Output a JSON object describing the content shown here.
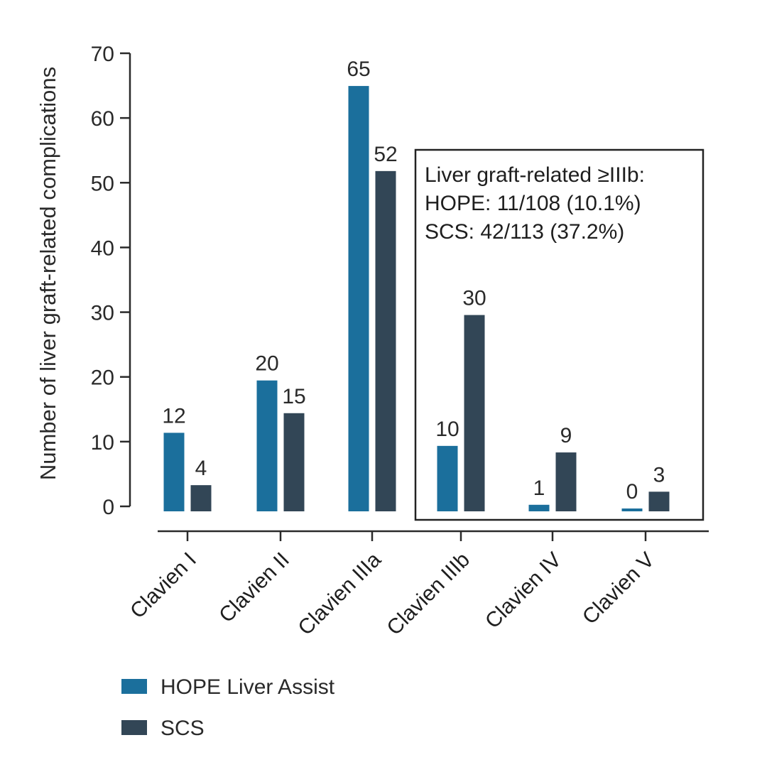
{
  "chart_data": {
    "type": "bar",
    "title": "",
    "xlabel": "",
    "ylabel": "Number of liver graft-related complications",
    "ylim": [
      0,
      70
    ],
    "yticks": [
      0,
      10,
      20,
      30,
      40,
      50,
      60,
      70
    ],
    "categories": [
      "Clavien I",
      "Clavien II",
      "Clavien IIIa",
      "Clavien IIIb",
      "Clavien IV",
      "Clavien V"
    ],
    "series": [
      {
        "name": "HOPE Liver Assist",
        "color": "#1b6f9c",
        "values": [
          12,
          20,
          65,
          10,
          1,
          0
        ]
      },
      {
        "name": "SCS",
        "color": "#324656",
        "values": [
          4,
          15,
          52,
          30,
          9,
          3
        ]
      }
    ],
    "legend_position": "bottom-left",
    "annotation": {
      "lines": [
        "Liver graft-related ≥IIIb:",
        "HOPE: 11/108 (10.1%)",
        "SCS: 42/113 (37.2%)"
      ]
    }
  }
}
